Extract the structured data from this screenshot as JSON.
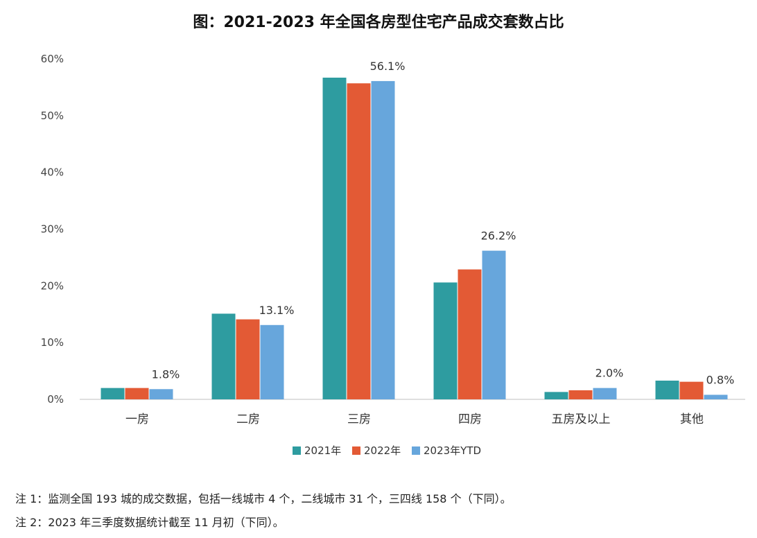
{
  "title": "图：2021-2023 年全国各房型住宅产品成交套数占比",
  "notes": [
    "注 1：监测全国 193 城的成交数据，包括一线城市 4 个，二线城市 31 个，三四线 158 个（下同）。",
    "注 2：2023 年三季度数据统计截至 11 月初（下同）。"
  ],
  "chart_data": {
    "type": "bar",
    "categories": [
      "一房",
      "二房",
      "三房",
      "四房",
      "五房及以上",
      "其他"
    ],
    "series": [
      {
        "name": "2021年",
        "color": "#2e9ca0",
        "values": [
          2.0,
          15.1,
          56.7,
          20.6,
          1.3,
          3.3
        ]
      },
      {
        "name": "2022年",
        "color": "#e35a35",
        "values": [
          2.0,
          14.1,
          55.7,
          22.9,
          1.6,
          3.1
        ]
      },
      {
        "name": "2023年YTD",
        "color": "#67a6dc",
        "values": [
          1.8,
          13.1,
          56.1,
          26.2,
          2.0,
          0.8
        ]
      }
    ],
    "data_labels": [
      {
        "series": 2,
        "index": 0,
        "text": "1.8%"
      },
      {
        "series": 2,
        "index": 1,
        "text": "13.1%"
      },
      {
        "series": 2,
        "index": 2,
        "text": "56.1%"
      },
      {
        "series": 2,
        "index": 3,
        "text": "26.2%"
      },
      {
        "series": 2,
        "index": 4,
        "text": "2.0%"
      },
      {
        "series": 2,
        "index": 5,
        "text": "0.8%"
      }
    ],
    "ylim": [
      0,
      60
    ],
    "yticks": [
      "0%",
      "10%",
      "20%",
      "30%",
      "40%",
      "50%",
      "60%"
    ],
    "grid": false,
    "legend": "bottom-center"
  }
}
